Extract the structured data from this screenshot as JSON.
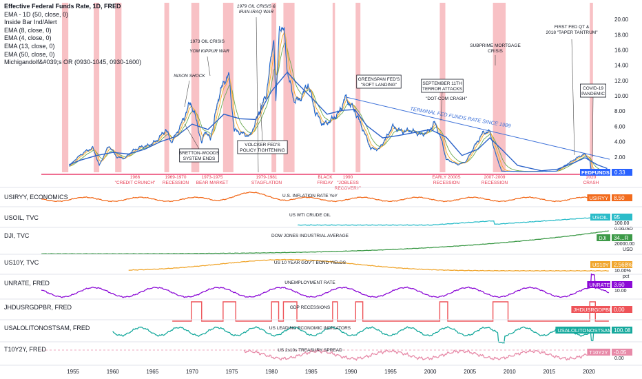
{
  "legend": {
    "title": "Effective Federal Funds Rate, 1D, FRED",
    "lines": [
      "EMA - 1D (50, close, 0)",
      "Inside Bar Ind/Alert",
      "EMA (8, close, 0)",
      "EMA (4, close, 0)",
      "EMA (13, close, 0)",
      "EMA (50, close, 0)",
      "Michigandolf&#039;s OR (0930-1045, 0930-1600)"
    ]
  },
  "colors": {
    "fed": "#1e66d0",
    "ema_orange": "#f5a623",
    "ema_green": "#6aa84f",
    "ema_blue": "#2a62c9",
    "recession": "#f7b6bb",
    "recession_text": "#e53950",
    "baseline": "#e5184f",
    "trend": "#3a6fd8"
  },
  "x_axis_years": [
    "1955",
    "1960",
    "1965",
    "1970",
    "1975",
    "1980",
    "1985",
    "1990",
    "1995",
    "2000",
    "2005",
    "2010",
    "2015",
    "2020"
  ],
  "main_y_ticks": [
    "20.00",
    "18.00",
    "16.00",
    "14.00",
    "12.00",
    "10.00",
    "8.00",
    "6.00",
    "4.00",
    "2.00"
  ],
  "recession_labels": [
    {
      "lines": [
        "1966",
        "\"CREDIT CRUNCH\""
      ]
    },
    {
      "lines": [
        "1969-1970",
        "RECESSION"
      ]
    },
    {
      "lines": [
        "1973-1975",
        "BEAR MARKET"
      ]
    },
    {
      "lines": [
        "1979-1981",
        "STAGFLATION"
      ]
    },
    {
      "lines": [
        "BLACK",
        "FRIDAY"
      ]
    },
    {
      "lines": [
        "1990",
        "\"JOBLESS",
        "RECOVERY\""
      ]
    },
    {
      "lines": [
        "EARLY 2000S",
        "RECESSION"
      ]
    },
    {
      "lines": [
        "2007-2009",
        "RECESSION"
      ]
    },
    {
      "lines": [
        "2020",
        "CRASH"
      ]
    }
  ],
  "annotations": [
    {
      "lines": [
        "1979 OIL CRISIS &",
        "IRAN-IRAQ WAR"
      ],
      "boxed": false,
      "italic": true
    },
    {
      "lines": [
        "1973 OIL CRISIS"
      ],
      "boxed": false,
      "italic": false
    },
    {
      "lines": [
        "YOM KIPPUR WAR"
      ],
      "boxed": false,
      "italic": true
    },
    {
      "lines": [
        "NIXON SHOCK"
      ],
      "boxed": false,
      "italic": true
    },
    {
      "lines": [
        "BRETTON-WOODS",
        "SYSTEM ENDS"
      ],
      "boxed": true,
      "italic": false
    },
    {
      "lines": [
        "VOLCKER FED'S",
        "POLICY TIGHTENING"
      ],
      "boxed": true,
      "italic": false
    },
    {
      "lines": [
        "GREENSPAN FED'S",
        "\"SOFT LANDING\""
      ],
      "boxed": true,
      "italic": false
    },
    {
      "lines": [
        "SEPTEMBER 11TH",
        "TERROR ATTACKS"
      ],
      "boxed": true,
      "italic": false
    },
    {
      "lines": [
        "\"DOT-COM CRASH\""
      ],
      "boxed": false,
      "italic": false
    },
    {
      "lines": [
        "SUBPRIME MORTGAGE",
        "CRISIS"
      ],
      "boxed": false,
      "italic": false
    },
    {
      "lines": [
        "FIRST FED QT &",
        "2018 \"TAPER TANTRUM\""
      ],
      "boxed": false,
      "italic": false
    },
    {
      "lines": [
        "COVID-19",
        "PANDEMIC"
      ],
      "boxed": true,
      "italic": false
    }
  ],
  "trend_label": "TERMINAL FED FUNDS RATE SINCE 1989",
  "fed_badge": {
    "label": "FEDFUNDS",
    "value": "0.33"
  },
  "panels": [
    {
      "title": "USIRYY, ECONOMICS",
      "center": "U.S. INFLATION RATE YoY",
      "badge": "USIRYY",
      "value": "8.50",
      "color": "#f26b1d"
    },
    {
      "title": "USOIL, TVC",
      "center": "US WTI CRUDE OIL",
      "badge": "USOIL",
      "value": "95",
      "color": "#2bbcc9",
      "scale": [
        "100.00",
        "0.00"
      ],
      "unit": "USD"
    },
    {
      "title": "DJI, TVC",
      "center": "DOW JONES INDUSTRIAL AVERAGE",
      "badge": "DJI",
      "value": "34...R",
      "color": "#3d9a48",
      "scale": [
        "20000.00"
      ],
      "unit": "USD"
    },
    {
      "title": "US10Y, TVC",
      "center": "US 10 YEAR GOV'T BOND YIELDS",
      "badge": "US10Y",
      "value": "2.568%",
      "color": "#f0a62e",
      "scale": [
        "10.00%"
      ],
      "unit": "pct"
    },
    {
      "title": "UNRATE, FRED",
      "center": "UNEMPLOYMENT RATE",
      "badge": "UNRATE",
      "value": "3.60",
      "color": "#8b0ad6",
      "scale": [
        "10.00"
      ]
    },
    {
      "title": "JHDUSRGDPBR, FRED",
      "center": "GDP RECESSIONS",
      "badge": "JHDUSRGDPBR",
      "value": "0.00",
      "color": "#ee5358"
    },
    {
      "title": "USALOLITONOSTSAM, FRED",
      "center": "US LEADING ECONOMIC INDICATORS",
      "badge": "USALOLITONOSTSAM",
      "value": "100.08",
      "color": "#17a99d"
    },
    {
      "title": "T10Y2Y, FRED",
      "center": "US 2s10s TREASURY SPREAD",
      "badge": "T10Y2Y",
      "value": "-0.05",
      "color": "#e78aa8",
      "scale": [
        "0.00"
      ]
    }
  ],
  "chart_data": {
    "type": "line",
    "title": "Effective Federal Funds Rate",
    "x_range": [
      1951,
      2022.6
    ],
    "y_range": [
      0,
      21
    ],
    "recessions": [
      [
        1953.6,
        1954.4
      ],
      [
        1957.6,
        1958.3
      ],
      [
        1960.3,
        1961.1
      ],
      [
        1966.5,
        1967.1
      ],
      [
        1969.9,
        1970.9
      ],
      [
        1973.9,
        1975.2
      ],
      [
        1980.0,
        1980.6
      ],
      [
        1981.5,
        1982.9
      ],
      [
        1987.7,
        1988.0
      ],
      [
        1990.6,
        1991.2
      ],
      [
        2001.2,
        2001.9
      ],
      [
        2007.9,
        2009.5
      ],
      [
        2020.1,
        2020.5
      ]
    ],
    "fed_funds": {
      "name": "FEDFUNDS",
      "points": [
        [
          1954.5,
          0.8
        ],
        [
          1955.5,
          1.9
        ],
        [
          1956.5,
          2.7
        ],
        [
          1957.5,
          3.2
        ],
        [
          1958.3,
          0.9
        ],
        [
          1959.5,
          3.5
        ],
        [
          1960.5,
          2.0
        ],
        [
          1961.5,
          1.8
        ],
        [
          1962.5,
          2.8
        ],
        [
          1963.5,
          3.3
        ],
        [
          1964.5,
          3.5
        ],
        [
          1965.5,
          4.1
        ],
        [
          1966.7,
          5.6
        ],
        [
          1967.4,
          3.9
        ],
        [
          1968.5,
          6.0
        ],
        [
          1969.8,
          9.2
        ],
        [
          1970.6,
          6.6
        ],
        [
          1971.2,
          3.7
        ],
        [
          1971.6,
          5.5
        ],
        [
          1972.3,
          4.3
        ],
        [
          1973.5,
          10.6
        ],
        [
          1974.6,
          12.9
        ],
        [
          1975.3,
          5.5
        ],
        [
          1976.5,
          5.0
        ],
        [
          1977.3,
          4.7
        ],
        [
          1978.5,
          8.0
        ],
        [
          1979.3,
          10.0
        ],
        [
          1980.3,
          17.6
        ],
        [
          1980.55,
          9.0
        ],
        [
          1981.0,
          19.1
        ],
        [
          1981.6,
          18.5
        ],
        [
          1982.0,
          13.2
        ],
        [
          1982.8,
          9.5
        ],
        [
          1983.5,
          9.4
        ],
        [
          1984.6,
          11.6
        ],
        [
          1985.5,
          7.9
        ],
        [
          1986.5,
          6.2
        ],
        [
          1987.5,
          6.8
        ],
        [
          1988.5,
          7.8
        ],
        [
          1989.3,
          9.8
        ],
        [
          1990.5,
          8.0
        ],
        [
          1991.5,
          5.7
        ],
        [
          1992.5,
          3.1
        ],
        [
          1993.5,
          3.0
        ],
        [
          1994.5,
          4.6
        ],
        [
          1995.2,
          6.0
        ],
        [
          1996.5,
          5.3
        ],
        [
          1997.5,
          5.5
        ],
        [
          1998.8,
          4.9
        ],
        [
          1999.6,
          5.2
        ],
        [
          2000.6,
          6.5
        ],
        [
          2001.5,
          3.9
        ],
        [
          2002.0,
          1.7
        ],
        [
          2003.5,
          1.0
        ],
        [
          2004.5,
          1.4
        ],
        [
          2005.5,
          3.3
        ],
        [
          2006.7,
          5.25
        ],
        [
          2007.5,
          5.25
        ],
        [
          2008.2,
          2.5
        ],
        [
          2009.0,
          0.15
        ],
        [
          2012.0,
          0.1
        ],
        [
          2015.9,
          0.15
        ],
        [
          2017.0,
          0.9
        ],
        [
          2018.5,
          1.9
        ],
        [
          2019.4,
          2.4
        ],
        [
          2020.1,
          1.6
        ],
        [
          2020.3,
          0.05
        ],
        [
          2021.6,
          0.08
        ],
        [
          2022.3,
          0.33
        ]
      ]
    },
    "ema_long": {
      "name": "EMA (50, close, 0)",
      "points": [
        [
          1954.5,
          1.0
        ],
        [
          1956,
          1.6
        ],
        [
          1958,
          2.2
        ],
        [
          1960,
          2.6
        ],
        [
          1962,
          2.4
        ],
        [
          1964,
          3.0
        ],
        [
          1966,
          4.0
        ],
        [
          1968,
          4.7
        ],
        [
          1970,
          6.3
        ],
        [
          1972,
          5.6
        ],
        [
          1974,
          7.6
        ],
        [
          1976,
          7.0
        ],
        [
          1978,
          6.9
        ],
        [
          1980,
          10.6
        ],
        [
          1982,
          13.1
        ],
        [
          1983,
          11.9
        ],
        [
          1985,
          9.8
        ],
        [
          1987,
          7.6
        ],
        [
          1989,
          8.1
        ],
        [
          1990.5,
          8.2
        ],
        [
          1992,
          6.1
        ],
        [
          1994,
          4.5
        ],
        [
          1996,
          4.8
        ],
        [
          1998,
          5.2
        ],
        [
          2000,
          5.6
        ],
        [
          2002,
          4.6
        ],
        [
          2004,
          2.2
        ],
        [
          2006,
          3.0
        ],
        [
          2007.5,
          4.5
        ],
        [
          2009,
          3.0
        ],
        [
          2011,
          0.9
        ],
        [
          2014,
          0.2
        ],
        [
          2016,
          0.4
        ],
        [
          2018,
          1.2
        ],
        [
          2019.5,
          1.9
        ],
        [
          2021,
          1.0
        ],
        [
          2022.3,
          0.5
        ]
      ]
    },
    "trend_line": {
      "name": "TERMINAL FED FUNDS RATE SINCE 1989",
      "points": [
        [
          1989.3,
          9.85
        ],
        [
          2022.6,
          1.7
        ]
      ]
    }
  }
}
